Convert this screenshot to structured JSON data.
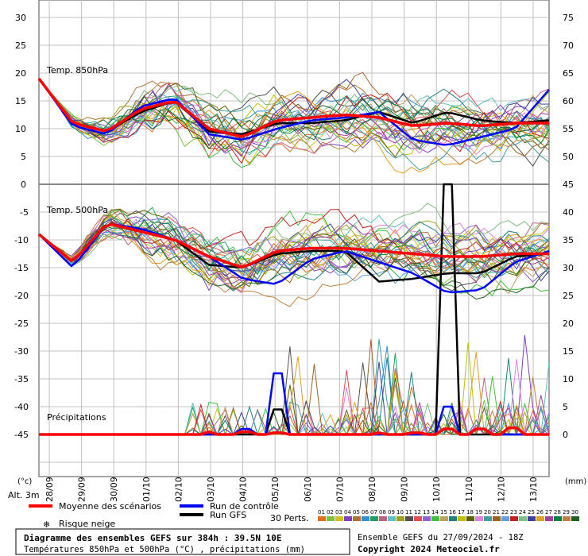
{
  "chart_data": {
    "type": "line",
    "panels": [
      {
        "label": "Temp. 850hPa",
        "unit_left": "°C",
        "left_ylim": [
          0,
          30
        ],
        "left_ticks": [
          "30",
          "25",
          "20",
          "15",
          "10",
          "5",
          "0"
        ],
        "right_ticks": [
          "75",
          "70",
          "65",
          "60",
          "55",
          "50",
          "45"
        ]
      },
      {
        "label": "Temp. 500hPa",
        "left_ylim": [
          -45,
          0
        ],
        "left_ticks": [
          "-5",
          "-10",
          "-15",
          "-20",
          "-25",
          "-30",
          "-35",
          "-40",
          "-45"
        ],
        "right_ticks": [
          "40",
          "35",
          "30",
          "25",
          "20",
          "15",
          "10",
          "5",
          "0"
        ]
      },
      {
        "label": "Précipitations",
        "unit": "mm",
        "right_ylim": [
          0,
          45
        ]
      }
    ],
    "x_labels": [
      "28/09",
      "29/09",
      "30/09",
      "01/10",
      "02/10",
      "03/10",
      "04/10",
      "05/10",
      "06/10",
      "07/10",
      "08/10",
      "09/10",
      "10/10",
      "11/10",
      "12/10",
      "13/10"
    ],
    "unit_left_axis": "(°c)",
    "unit_right_axis": "(mm)",
    "altitude_label": "Alt. 3m",
    "series": [
      {
        "name": "Moyenne des scénarios",
        "color": "#ff0000",
        "t850": [
          19,
          11,
          9.5,
          13.5,
          15,
          10,
          8.5,
          11.5,
          12,
          12.5,
          12,
          10.5,
          11,
          10.5,
          11,
          11
        ],
        "t500": [
          -9,
          -14,
          -7,
          -8.5,
          -10,
          -13,
          -15,
          -12,
          -11.5,
          -11.5,
          -12,
          -12.5,
          -13,
          -13,
          -12.5,
          -12.5
        ],
        "precip": [
          0,
          0,
          0,
          0,
          0,
          0.5,
          0.5,
          0.3,
          0,
          0,
          0.3,
          0.3,
          1,
          1,
          1.2,
          0
        ]
      },
      {
        "name": "Run de contrôle",
        "color": "#0000ff",
        "t850": [
          19,
          10.5,
          9,
          14,
          15.5,
          9,
          8,
          10,
          11.5,
          12,
          13,
          8,
          7,
          8.5,
          10,
          17
        ],
        "t500": [
          -9,
          -15,
          -7,
          -8,
          -10,
          -13,
          -17,
          -18,
          -13.5,
          -12,
          -14,
          -16,
          -19.5,
          -19,
          -14,
          -12
        ],
        "precip": [
          0,
          0,
          0,
          0,
          0,
          0,
          1,
          11,
          0,
          0,
          0,
          0,
          5,
          1,
          0,
          0
        ]
      },
      {
        "name": "Run GFS",
        "color": "#000000",
        "t850": [
          19,
          11,
          9.5,
          13,
          15,
          9.5,
          9,
          11,
          11,
          11.5,
          13,
          11,
          13,
          11.5,
          11,
          11.5
        ],
        "t500": [
          -9,
          -14,
          -7,
          -8.5,
          -10,
          -14.5,
          -15,
          -12.5,
          -12,
          -12,
          -17.5,
          -17,
          -16,
          -16,
          -13,
          -12.5
        ],
        "precip": [
          0,
          0,
          0,
          0,
          0,
          0,
          0,
          4.5,
          0,
          0,
          0,
          0,
          45,
          0,
          0,
          0
        ]
      }
    ],
    "legend_extra": "Risque neige",
    "perturbations_label": "30 Perts.",
    "perturbation_ids": [
      "01",
      "02",
      "03",
      "04",
      "05",
      "06",
      "07",
      "08",
      "09",
      "10",
      "11",
      "12",
      "13",
      "14",
      "15",
      "16",
      "17",
      "18",
      "19",
      "20",
      "21",
      "22",
      "23",
      "24",
      "25",
      "26",
      "27",
      "28",
      "29",
      "30"
    ],
    "perturbation_colors": [
      "#e07020",
      "#7fbf3f",
      "#d0c020",
      "#8040c0",
      "#b07030",
      "#3090d0",
      "#20a060",
      "#c06080",
      "#60c0c0",
      "#a0a020",
      "#505050",
      "#e05050",
      "#9060e0",
      "#40c040",
      "#c0a060",
      "#208080",
      "#c0c000",
      "#606000",
      "#e080e0",
      "#40a0a0",
      "#a06020",
      "#60a0e0",
      "#c02020",
      "#80c080",
      "#4040a0",
      "#e0a020",
      "#a040a0",
      "#008040",
      "#c08040",
      "#206020"
    ]
  },
  "footer": {
    "title": "Diagramme des ensembles GEFS sur 384h : 39.5N 10E",
    "subtitle": "Températures 850hPa et 500hPa (°C) , précipitations (mm)",
    "run_info": "Ensemble GEFS du 27/09/2024 - 18Z",
    "copyright": "Copyright 2024 Meteociel.fr"
  }
}
